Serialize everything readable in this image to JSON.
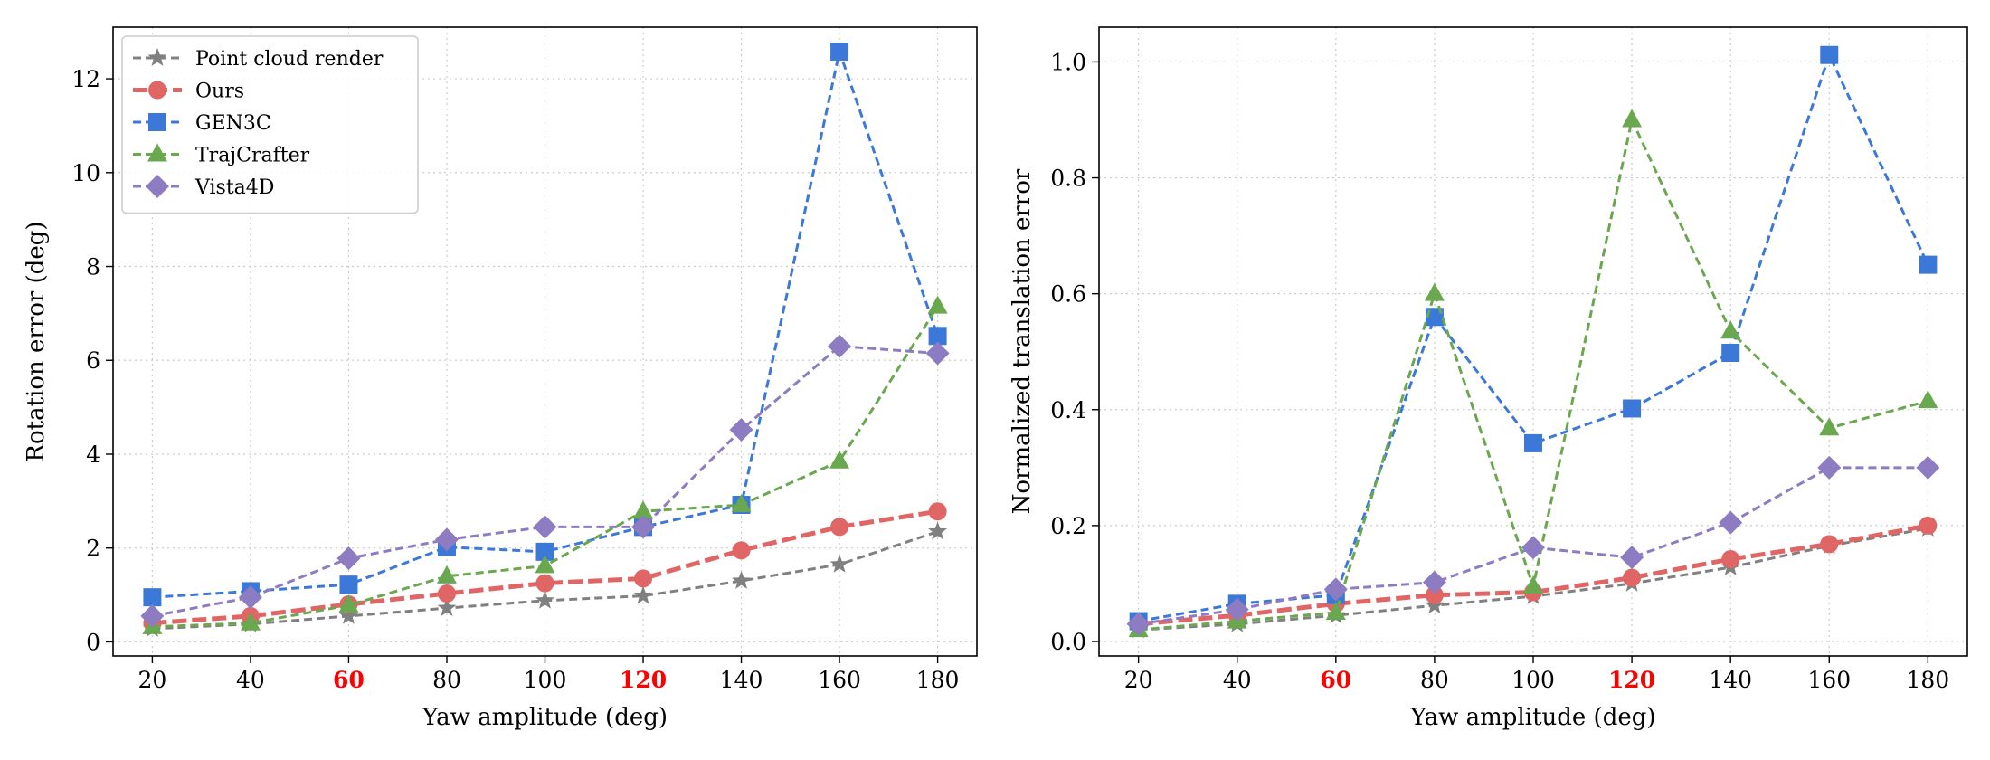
{
  "chart_data": [
    {
      "type": "line",
      "xlabel": "Yaw amplitude (deg)",
      "ylabel": "Rotation error (deg)",
      "x": [
        20,
        40,
        60,
        80,
        100,
        120,
        140,
        160,
        180
      ],
      "x_tick_labels": [
        "20",
        "40",
        "60",
        "80",
        "100",
        "120",
        "140",
        "160",
        "180"
      ],
      "highlighted_x_ticks": [
        "60",
        "120"
      ],
      "highlight_color": "#ff0000",
      "xlim": [
        12,
        188
      ],
      "ylim": [
        -0.3,
        13.1
      ],
      "y_ticks": [
        0,
        2,
        4,
        6,
        8,
        10,
        12
      ],
      "y_tick_labels": [
        "0",
        "2",
        "4",
        "6",
        "8",
        "10",
        "12"
      ],
      "grid": true,
      "legend_position": "top-left",
      "series": [
        {
          "name": "Point cloud render",
          "color": "#808080",
          "marker": "star",
          "values": [
            0.28,
            0.38,
            0.55,
            0.72,
            0.88,
            0.98,
            1.3,
            1.65,
            2.35
          ]
        },
        {
          "name": "Ours",
          "color": "#e06666",
          "marker": "circle",
          "values": [
            0.4,
            0.55,
            0.8,
            1.03,
            1.25,
            1.35,
            1.95,
            2.45,
            2.78
          ]
        },
        {
          "name": "GEN3C",
          "color": "#3c78d8",
          "marker": "square",
          "values": [
            0.95,
            1.08,
            1.22,
            2.02,
            1.92,
            2.45,
            2.92,
            12.58,
            6.52
          ]
        },
        {
          "name": "TrajCrafter",
          "color": "#6aa84f",
          "marker": "triangle",
          "values": [
            0.32,
            0.4,
            0.78,
            1.4,
            1.62,
            2.78,
            2.92,
            3.85,
            7.15
          ]
        },
        {
          "name": "Vista4D",
          "color": "#8e7cc3",
          "marker": "diamond",
          "values": [
            0.55,
            0.95,
            1.78,
            2.18,
            2.45,
            2.45,
            4.52,
            6.3,
            6.15
          ]
        }
      ]
    },
    {
      "type": "line",
      "xlabel": "Yaw amplitude (deg)",
      "ylabel": "Normalized translation error",
      "x": [
        20,
        40,
        60,
        80,
        100,
        120,
        140,
        160,
        180
      ],
      "x_tick_labels": [
        "20",
        "40",
        "60",
        "80",
        "100",
        "120",
        "140",
        "160",
        "180"
      ],
      "highlighted_x_ticks": [
        "60",
        "120"
      ],
      "highlight_color": "#ff0000",
      "xlim": [
        12,
        188
      ],
      "ylim": [
        -0.025,
        1.06
      ],
      "y_ticks": [
        0.0,
        0.2,
        0.4,
        0.6,
        0.8,
        1.0
      ],
      "y_tick_labels": [
        "0.0",
        "0.2",
        "0.4",
        "0.6",
        "0.8",
        "1.0"
      ],
      "grid": true,
      "series": [
        {
          "name": "Point cloud render",
          "color": "#808080",
          "marker": "star",
          "values": [
            0.02,
            0.03,
            0.045,
            0.062,
            0.078,
            0.1,
            0.128,
            0.165,
            0.195
          ]
        },
        {
          "name": "Ours",
          "color": "#e06666",
          "marker": "circle",
          "values": [
            0.03,
            0.045,
            0.065,
            0.08,
            0.085,
            0.11,
            0.142,
            0.168,
            0.2
          ]
        },
        {
          "name": "GEN3C",
          "color": "#3c78d8",
          "marker": "square",
          "values": [
            0.035,
            0.065,
            0.08,
            0.56,
            0.342,
            0.402,
            0.498,
            1.012,
            0.65
          ]
        },
        {
          "name": "TrajCrafter",
          "color": "#6aa84f",
          "marker": "triangle",
          "values": [
            0.02,
            0.035,
            0.05,
            0.6,
            0.095,
            0.9,
            0.535,
            0.368,
            0.415
          ]
        },
        {
          "name": "Vista4D",
          "color": "#8e7cc3",
          "marker": "diamond",
          "values": [
            0.03,
            0.055,
            0.09,
            0.102,
            0.162,
            0.145,
            0.205,
            0.3,
            0.3
          ]
        }
      ]
    }
  ]
}
